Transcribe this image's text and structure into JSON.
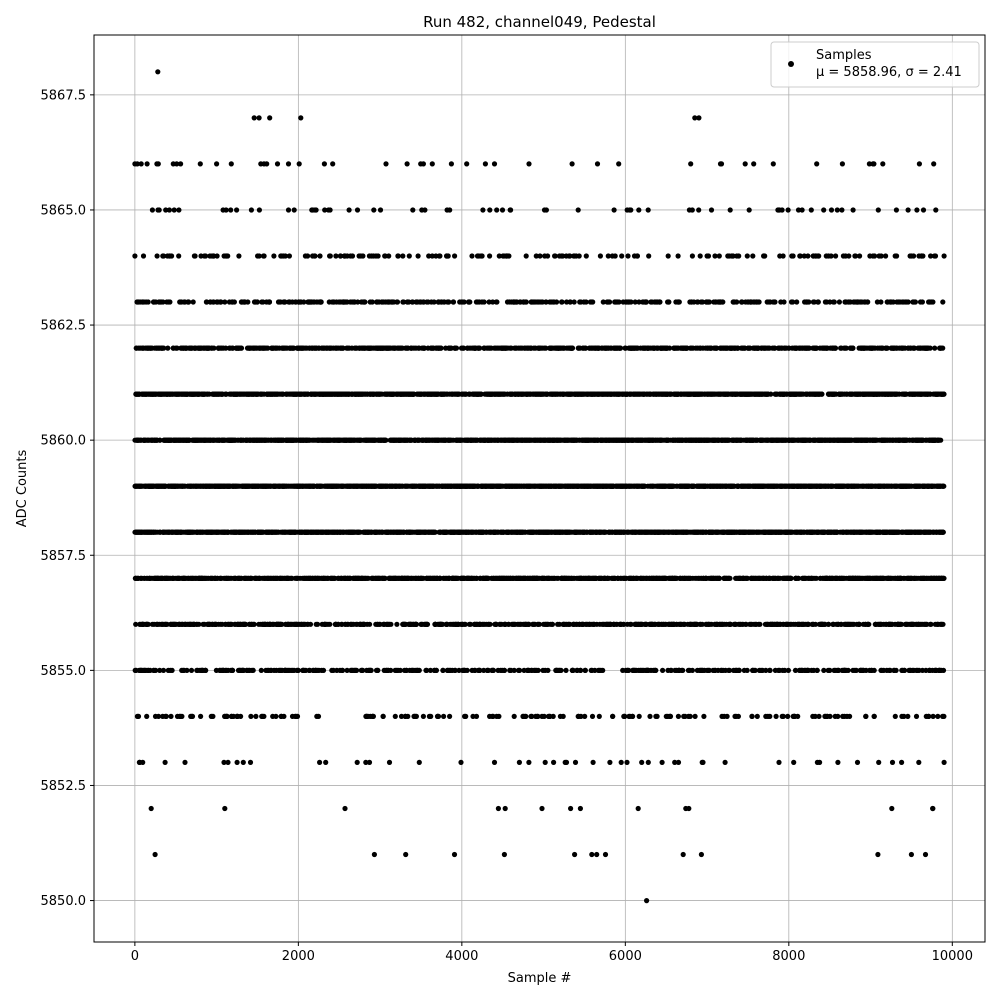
{
  "chart_data": {
    "type": "scatter",
    "title": "Run 482, channel049, Pedestal",
    "xlabel": "Sample #",
    "ylabel": "ADC Counts",
    "xlim": [
      -500,
      10400
    ],
    "ylim": [
      5849.1,
      5868.8
    ],
    "xticks": [
      0,
      2000,
      4000,
      6000,
      8000,
      10000
    ],
    "xtick_labels": [
      "0",
      "2000",
      "4000",
      "6000",
      "8000",
      "10000"
    ],
    "yticks": [
      5850.0,
      5852.5,
      5855.0,
      5857.5,
      5860.0,
      5862.5,
      5865.0,
      5867.5
    ],
    "ytick_labels": [
      "5850.0",
      "5852.5",
      "5855.0",
      "5857.5",
      "5860.0",
      "5862.5",
      "5865.0",
      "5867.5"
    ],
    "grid": true,
    "legend_position": "top-right",
    "marker_color": "#000000",
    "series": [
      {
        "name": "Samples",
        "stats_label": "μ = 5858.96, σ = 2.41",
        "x_range": [
          0,
          9900
        ],
        "distribution": {
          "mean": 5858.96,
          "sigma": 2.41,
          "min": 5850,
          "max": 5868,
          "step": 1
        },
        "count_hint": 9900
      }
    ],
    "points": [
      [
        280,
        5868
      ],
      [
        1460,
        5867
      ],
      [
        1520,
        5867
      ],
      [
        1650,
        5867
      ],
      [
        2030,
        5867
      ],
      [
        6850,
        5867
      ],
      [
        6900,
        5867
      ],
      [
        0,
        5866
      ],
      [
        30,
        5866
      ],
      [
        150,
        5866
      ],
      [
        270,
        5866
      ],
      [
        470,
        5866
      ],
      [
        800,
        5866
      ],
      [
        1000,
        5866
      ],
      [
        1180,
        5866
      ],
      [
        1580,
        5866
      ],
      [
        1880,
        5866
      ],
      [
        2010,
        5866
      ],
      [
        2420,
        5866
      ],
      [
        3330,
        5866
      ],
      [
        3530,
        5866
      ],
      [
        5660,
        5866
      ],
      [
        7570,
        5866
      ],
      [
        7810,
        5866
      ],
      [
        9030,
        5866
      ],
      [
        9150,
        5866
      ],
      [
        6260,
        5850
      ],
      [
        200,
        5852
      ],
      [
        1100,
        5852
      ],
      [
        2570,
        5852
      ],
      [
        4530,
        5852
      ],
      [
        4980,
        5852
      ],
      [
        5330,
        5852
      ],
      [
        5450,
        5852
      ],
      [
        6740,
        5852
      ],
      [
        9260,
        5852
      ],
      [
        9760,
        5852
      ],
      [
        2930,
        5851
      ],
      [
        3910,
        5851
      ],
      [
        4520,
        5851
      ],
      [
        5380,
        5851
      ],
      [
        5590,
        5851
      ],
      [
        6930,
        5851
      ],
      [
        9090,
        5851
      ],
      [
        9500,
        5851
      ],
      [
        60,
        5853
      ],
      [
        370,
        5853
      ],
      [
        1090,
        5853
      ],
      [
        2260,
        5853
      ],
      [
        2720,
        5853
      ],
      [
        2870,
        5853
      ],
      [
        3480,
        5853
      ],
      [
        3990,
        5853
      ],
      [
        4400,
        5853
      ],
      [
        4820,
        5853
      ],
      [
        5020,
        5853
      ],
      [
        5280,
        5853
      ],
      [
        5390,
        5853
      ],
      [
        5950,
        5853
      ],
      [
        6200,
        5853
      ],
      [
        6450,
        5853
      ],
      [
        6650,
        5853
      ],
      [
        6950,
        5853
      ],
      [
        7220,
        5853
      ],
      [
        7880,
        5853
      ],
      [
        8060,
        5853
      ],
      [
        8350,
        5853
      ],
      [
        8600,
        5853
      ],
      [
        8840,
        5853
      ],
      [
        9100,
        5853
      ],
      [
        9380,
        5853
      ],
      [
        9590,
        5853
      ],
      [
        9900,
        5853
      ]
    ]
  }
}
